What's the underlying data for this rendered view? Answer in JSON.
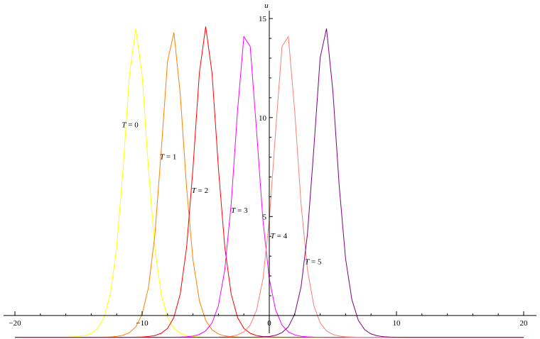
{
  "chart_data": {
    "type": "line",
    "title": "",
    "xlabel": "",
    "ylabel": "u",
    "xlim": [
      -20,
      20
    ],
    "ylim": [
      -1.4,
      15.4
    ],
    "grid": false,
    "legend": "none",
    "x_ticks": [
      -20,
      -10,
      0,
      10,
      20
    ],
    "x_tick_labels": [
      "−20",
      "−10",
      "0",
      "10",
      "20"
    ],
    "y_ticks": [
      5,
      10,
      15
    ],
    "y_tick_labels": [
      "5",
      "10",
      "15"
    ],
    "series": [
      {
        "label_var": "T",
        "label_eq": " = ",
        "label_val": "0",
        "color": "#ffff00",
        "peak_x": -10.5,
        "peak_u": 14.5,
        "baseline_u": -1.1,
        "label_pos": {
          "x": -11.6,
          "u": 9.5
        }
      },
      {
        "label_var": "T",
        "label_eq": " = ",
        "label_val": "1",
        "color": "#ff8000",
        "peak_x": -7.6,
        "peak_u": 14.4,
        "baseline_u": -1.1,
        "label_pos": {
          "x": -8.6,
          "u": 7.9
        }
      },
      {
        "label_var": "T",
        "label_eq": " = ",
        "label_val": "2",
        "color": "#ff0000",
        "peak_x": -5.0,
        "peak_u": 14.6,
        "baseline_u": -1.1,
        "label_pos": {
          "x": -6.1,
          "u": 6.2
        }
      },
      {
        "label_var": "T",
        "label_eq": " = ",
        "label_val": "3",
        "color": "#ff00ff",
        "peak_x": -1.8,
        "peak_u": 14.5,
        "baseline_u": -1.1,
        "label_pos": {
          "x": -3.0,
          "u": 5.2
        }
      },
      {
        "label_var": "T",
        "label_eq": " = ",
        "label_val": "4",
        "color": "#fa8072",
        "peak_x": 1.3,
        "peak_u": 14.5,
        "baseline_u": -1.1,
        "label_pos": {
          "x": 0.1,
          "u": 3.9
        }
      },
      {
        "label_var": "T",
        "label_eq": " = ",
        "label_val": "5",
        "color": "#800080",
        "peak_x": 4.4,
        "peak_u": 14.6,
        "baseline_u": -1.1,
        "label_pos": {
          "x": 2.8,
          "u": 2.6
        }
      }
    ]
  }
}
